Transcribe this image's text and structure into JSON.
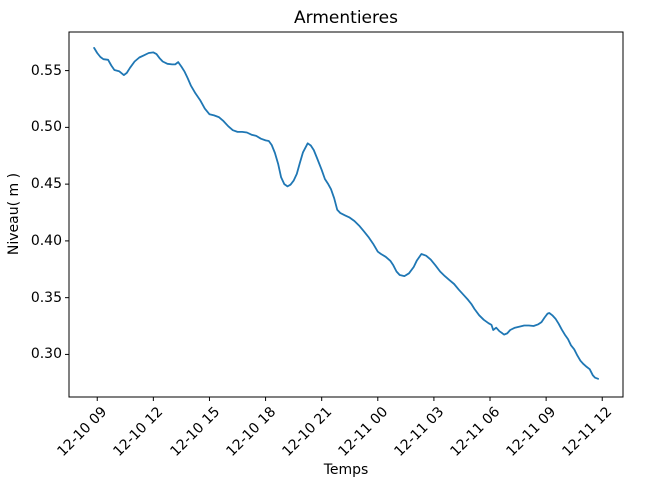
{
  "chart_data": {
    "type": "line",
    "title": "Armentieres",
    "xlabel": "Temps",
    "ylabel": "Niveau( m )",
    "grid": false,
    "legend": null,
    "line_color": "#1f77b4",
    "axis_color": "#000000",
    "background_color": "#ffffff",
    "y_ticks": [
      0.3,
      0.35,
      0.4,
      0.45,
      0.5,
      0.55
    ],
    "x_tick_labels": [
      "12-10 09",
      "12-10 12",
      "12-10 15",
      "12-10 18",
      "12-10 21",
      "12-11 00",
      "12-11 03",
      "12-11 06",
      "12-11 09",
      "12-11 12"
    ],
    "x_tick_hours": [
      9,
      12,
      15,
      18,
      21,
      24,
      27,
      30,
      33,
      36
    ],
    "xlim_hours": [
      7.49,
      37.11
    ],
    "ylim": [
      0.2625,
      0.584
    ],
    "series": [
      {
        "name": "Niveau",
        "points": [
          [
            8.83,
            0.57
          ],
          [
            9.0,
            0.5655
          ],
          [
            9.17,
            0.562
          ],
          [
            9.33,
            0.56
          ],
          [
            9.58,
            0.5595
          ],
          [
            9.75,
            0.5545
          ],
          [
            9.92,
            0.5505
          ],
          [
            10.17,
            0.5495
          ],
          [
            10.42,
            0.546
          ],
          [
            10.58,
            0.548
          ],
          [
            10.75,
            0.5525
          ],
          [
            11.0,
            0.558
          ],
          [
            11.25,
            0.5615
          ],
          [
            11.5,
            0.5635
          ],
          [
            11.75,
            0.5655
          ],
          [
            12.0,
            0.566
          ],
          [
            12.17,
            0.5645
          ],
          [
            12.33,
            0.561
          ],
          [
            12.5,
            0.558
          ],
          [
            12.75,
            0.556
          ],
          [
            13.0,
            0.5555
          ],
          [
            13.17,
            0.5555
          ],
          [
            13.33,
            0.5575
          ],
          [
            13.5,
            0.5535
          ],
          [
            13.67,
            0.549
          ],
          [
            13.83,
            0.5435
          ],
          [
            14.0,
            0.537
          ],
          [
            14.25,
            0.53
          ],
          [
            14.5,
            0.524
          ],
          [
            14.75,
            0.5165
          ],
          [
            15.0,
            0.5115
          ],
          [
            15.25,
            0.5105
          ],
          [
            15.5,
            0.509
          ],
          [
            15.75,
            0.5055
          ],
          [
            16.0,
            0.501
          ],
          [
            16.25,
            0.4975
          ],
          [
            16.5,
            0.496
          ],
          [
            16.75,
            0.496
          ],
          [
            17.0,
            0.4955
          ],
          [
            17.25,
            0.4935
          ],
          [
            17.5,
            0.4925
          ],
          [
            17.75,
            0.49
          ],
          [
            18.0,
            0.4885
          ],
          [
            18.17,
            0.488
          ],
          [
            18.33,
            0.4845
          ],
          [
            18.5,
            0.4775
          ],
          [
            18.67,
            0.468
          ],
          [
            18.83,
            0.456
          ],
          [
            19.0,
            0.45
          ],
          [
            19.17,
            0.448
          ],
          [
            19.33,
            0.4495
          ],
          [
            19.5,
            0.453
          ],
          [
            19.67,
            0.459
          ],
          [
            19.83,
            0.4685
          ],
          [
            20.0,
            0.478
          ],
          [
            20.25,
            0.486
          ],
          [
            20.42,
            0.484
          ],
          [
            20.58,
            0.48
          ],
          [
            20.75,
            0.473
          ],
          [
            21.0,
            0.4625
          ],
          [
            21.17,
            0.4545
          ],
          [
            21.33,
            0.4505
          ],
          [
            21.5,
            0.4455
          ],
          [
            21.67,
            0.4375
          ],
          [
            21.83,
            0.4275
          ],
          [
            22.0,
            0.4245
          ],
          [
            22.25,
            0.4225
          ],
          [
            22.5,
            0.4205
          ],
          [
            22.75,
            0.4175
          ],
          [
            23.0,
            0.4135
          ],
          [
            23.25,
            0.4085
          ],
          [
            23.5,
            0.4035
          ],
          [
            23.75,
            0.3975
          ],
          [
            24.0,
            0.3905
          ],
          [
            24.17,
            0.3885
          ],
          [
            24.42,
            0.386
          ],
          [
            24.67,
            0.3825
          ],
          [
            24.83,
            0.3785
          ],
          [
            25.0,
            0.373
          ],
          [
            25.17,
            0.37
          ],
          [
            25.42,
            0.369
          ],
          [
            25.67,
            0.3715
          ],
          [
            25.92,
            0.377
          ],
          [
            26.08,
            0.3825
          ],
          [
            26.33,
            0.3885
          ],
          [
            26.58,
            0.387
          ],
          [
            26.83,
            0.3835
          ],
          [
            27.08,
            0.3785
          ],
          [
            27.33,
            0.373
          ],
          [
            27.58,
            0.369
          ],
          [
            27.83,
            0.3655
          ],
          [
            28.08,
            0.362
          ],
          [
            28.33,
            0.357
          ],
          [
            28.58,
            0.3525
          ],
          [
            28.83,
            0.348
          ],
          [
            29.0,
            0.3445
          ],
          [
            29.17,
            0.34
          ],
          [
            29.42,
            0.3345
          ],
          [
            29.67,
            0.3305
          ],
          [
            29.92,
            0.3275
          ],
          [
            30.08,
            0.326
          ],
          [
            30.17,
            0.3215
          ],
          [
            30.33,
            0.3235
          ],
          [
            30.5,
            0.3205
          ],
          [
            30.67,
            0.3185
          ],
          [
            30.75,
            0.3175
          ],
          [
            30.92,
            0.3185
          ],
          [
            31.08,
            0.3215
          ],
          [
            31.33,
            0.3235
          ],
          [
            31.58,
            0.3245
          ],
          [
            31.83,
            0.3255
          ],
          [
            32.08,
            0.3255
          ],
          [
            32.33,
            0.325
          ],
          [
            32.58,
            0.3265
          ],
          [
            32.75,
            0.3285
          ],
          [
            32.92,
            0.3325
          ],
          [
            33.08,
            0.336
          ],
          [
            33.17,
            0.3365
          ],
          [
            33.33,
            0.3345
          ],
          [
            33.5,
            0.3315
          ],
          [
            33.67,
            0.327
          ],
          [
            33.83,
            0.322
          ],
          [
            34.0,
            0.3175
          ],
          [
            34.17,
            0.3135
          ],
          [
            34.33,
            0.308
          ],
          [
            34.5,
            0.3045
          ],
          [
            34.67,
            0.299
          ],
          [
            34.83,
            0.2945
          ],
          [
            35.0,
            0.2915
          ],
          [
            35.17,
            0.289
          ],
          [
            35.33,
            0.287
          ],
          [
            35.5,
            0.2815
          ],
          [
            35.62,
            0.2795
          ],
          [
            35.78,
            0.2785
          ]
        ]
      }
    ]
  }
}
